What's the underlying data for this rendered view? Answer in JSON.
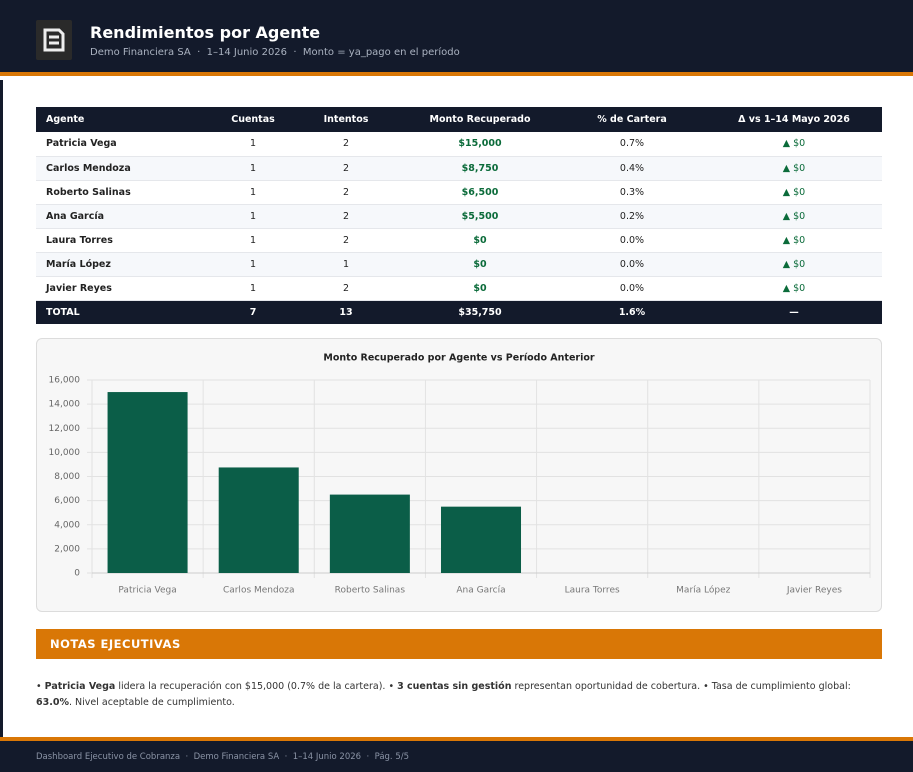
{
  "header": {
    "title": "Rendimientos por Agente",
    "subtitle": "Demo Financiera SA  ·  1–14 Junio 2026  ·  Monto = ya_pago en el período"
  },
  "table": {
    "columns": [
      "Agente",
      "Cuentas",
      "Intentos",
      "Monto Recuperado",
      "% de Cartera",
      "Δ vs 1–14 Mayo 2026"
    ],
    "rows": [
      [
        "Patricia Vega",
        "1",
        "2",
        "$15,000",
        "0.7%",
        "▲ $0"
      ],
      [
        "Carlos Mendoza",
        "1",
        "2",
        "$8,750",
        "0.4%",
        "▲ $0"
      ],
      [
        "Roberto Salinas",
        "1",
        "2",
        "$6,500",
        "0.3%",
        "▲ $0"
      ],
      [
        "Ana García",
        "1",
        "2",
        "$5,500",
        "0.2%",
        "▲ $0"
      ],
      [
        "Laura Torres",
        "1",
        "2",
        "$0",
        "0.0%",
        "▲ $0"
      ],
      [
        "María López",
        "1",
        "1",
        "$0",
        "0.0%",
        "▲ $0"
      ],
      [
        "Javier Reyes",
        "1",
        "2",
        "$0",
        "0.0%",
        "▲ $0"
      ]
    ],
    "total": [
      "TOTAL",
      "7",
      "13",
      "$35,750",
      "1.6%",
      "—"
    ]
  },
  "chart_data": {
    "type": "bar",
    "title": "Monto Recuperado por Agente vs Período Anterior",
    "categories": [
      "Patricia Vega",
      "Carlos Mendoza",
      "Roberto Salinas",
      "Ana García",
      "Laura Torres",
      "María López",
      "Javier Reyes"
    ],
    "values": [
      15000,
      8750,
      6500,
      5500,
      0,
      0,
      0
    ],
    "color": "#0b5e48",
    "ylim": [
      0,
      16000
    ],
    "yticks": [
      0,
      {
        "value": 2000,
        "label": "2,000"
      },
      {
        "value": 4000,
        "label": "4,000"
      },
      {
        "value": 6000,
        "label": "6,000"
      },
      {
        "value": 8000,
        "label": "8,000"
      },
      {
        "value": 10000,
        "label": "10,000"
      },
      {
        "value": 12000,
        "label": "12,000"
      },
      {
        "value": 14000,
        "label": "14,000"
      },
      {
        "value": 16000,
        "label": "16,000"
      }
    ],
    "grid": true
  },
  "notes": {
    "title": "NOTAS EJECUTIVAS",
    "items": [
      [
        "• ",
        {
          "b": "Patricia Vega"
        },
        " lidera la recuperación con $15,000 (0.7% de la cartera). "
      ],
      [
        "• ",
        {
          "b": "3 cuentas sin gestión"
        },
        " representan oportunidad de cobertura. "
      ],
      [
        "• Tasa de cumplimiento global: ",
        {
          "b": "63.0%"
        },
        ". Nivel aceptable de cumplimiento."
      ]
    ]
  },
  "footer": {
    "text": "Dashboard Ejecutivo de Cobranza  ·  Demo Financiera SA  ·  1–14 Junio 2026  ·  Pág. 5/5"
  }
}
